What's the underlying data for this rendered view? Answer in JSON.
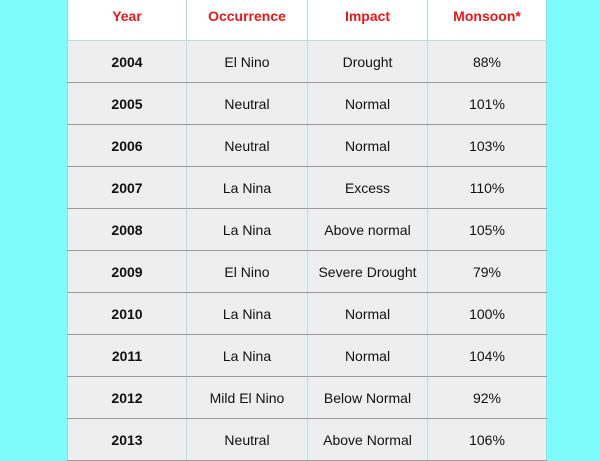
{
  "table": {
    "headers": [
      "Year",
      "Occurrence",
      "Impact",
      "Monsoon*"
    ],
    "rows": [
      [
        "2004",
        "El Nino",
        "Drought",
        "88%"
      ],
      [
        "2005",
        "Neutral",
        "Normal",
        "101%"
      ],
      [
        "2006",
        "Neutral",
        "Normal",
        "103%"
      ],
      [
        "2007",
        "La Nina",
        "Excess",
        "110%"
      ],
      [
        "2008",
        "La Nina",
        "Above normal",
        "105%"
      ],
      [
        "2009",
        "El Nino",
        "Severe Drought",
        "79%"
      ],
      [
        "2010",
        "La Nina",
        "Normal",
        "100%"
      ],
      [
        "2011",
        "La Nina",
        "Normal",
        "104%"
      ],
      [
        "2012",
        "Mild El Nino",
        "Below Normal",
        "92%"
      ],
      [
        "2013",
        "Neutral",
        "Above Normal",
        "106%"
      ]
    ]
  },
  "colors": {
    "background": "#7dfcfb",
    "header_text": "#e41a1a",
    "cell_background": "#eeeeee"
  }
}
